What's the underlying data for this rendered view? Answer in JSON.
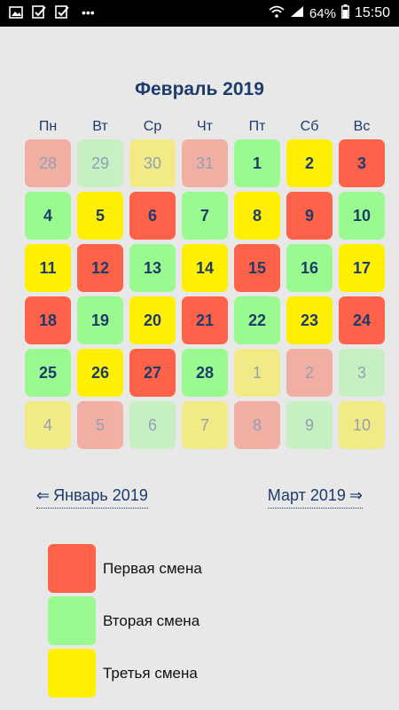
{
  "statusbar": {
    "battery": "64%",
    "time": "15:50",
    "more": "•••"
  },
  "calendar": {
    "title": "Февраль 2019",
    "weekdays": [
      "Пн",
      "Вт",
      "Ср",
      "Чт",
      "Пт",
      "Сб",
      "Вс"
    ],
    "days": [
      {
        "label": "28",
        "shift": "first",
        "muted": true
      },
      {
        "label": "29",
        "shift": "second",
        "muted": true
      },
      {
        "label": "30",
        "shift": "third",
        "muted": true
      },
      {
        "label": "31",
        "shift": "first",
        "muted": true
      },
      {
        "label": "1",
        "shift": "second",
        "muted": false
      },
      {
        "label": "2",
        "shift": "third",
        "muted": false
      },
      {
        "label": "3",
        "shift": "first",
        "muted": false
      },
      {
        "label": "4",
        "shift": "second",
        "muted": false
      },
      {
        "label": "5",
        "shift": "third",
        "muted": false
      },
      {
        "label": "6",
        "shift": "first",
        "muted": false
      },
      {
        "label": "7",
        "shift": "second",
        "muted": false
      },
      {
        "label": "8",
        "shift": "third",
        "muted": false
      },
      {
        "label": "9",
        "shift": "first",
        "muted": false
      },
      {
        "label": "10",
        "shift": "second",
        "muted": false
      },
      {
        "label": "11",
        "shift": "third",
        "muted": false
      },
      {
        "label": "12",
        "shift": "first",
        "muted": false
      },
      {
        "label": "13",
        "shift": "second",
        "muted": false
      },
      {
        "label": "14",
        "shift": "third",
        "muted": false
      },
      {
        "label": "15",
        "shift": "first",
        "muted": false
      },
      {
        "label": "16",
        "shift": "second",
        "muted": false
      },
      {
        "label": "17",
        "shift": "third",
        "muted": false
      },
      {
        "label": "18",
        "shift": "first",
        "muted": false
      },
      {
        "label": "19",
        "shift": "second",
        "muted": false
      },
      {
        "label": "20",
        "shift": "third",
        "muted": false
      },
      {
        "label": "21",
        "shift": "first",
        "muted": false
      },
      {
        "label": "22",
        "shift": "second",
        "muted": false
      },
      {
        "label": "23",
        "shift": "third",
        "muted": false
      },
      {
        "label": "24",
        "shift": "first",
        "muted": false
      },
      {
        "label": "25",
        "shift": "second",
        "muted": false
      },
      {
        "label": "26",
        "shift": "third",
        "muted": false
      },
      {
        "label": "27",
        "shift": "first",
        "muted": false
      },
      {
        "label": "28",
        "shift": "second",
        "muted": false
      },
      {
        "label": "1",
        "shift": "third",
        "muted": true
      },
      {
        "label": "2",
        "shift": "first",
        "muted": true
      },
      {
        "label": "3",
        "shift": "second",
        "muted": true
      },
      {
        "label": "4",
        "shift": "third",
        "muted": true
      },
      {
        "label": "5",
        "shift": "first",
        "muted": true
      },
      {
        "label": "6",
        "shift": "second",
        "muted": true
      },
      {
        "label": "7",
        "shift": "third",
        "muted": true
      },
      {
        "label": "8",
        "shift": "first",
        "muted": true
      },
      {
        "label": "9",
        "shift": "second",
        "muted": true
      },
      {
        "label": "10",
        "shift": "third",
        "muted": true
      }
    ]
  },
  "navigation": {
    "prev_arrow": "⇐",
    "prev_label": "Январь 2019",
    "next_label": "Март 2019",
    "next_arrow": "⇒"
  },
  "legend": [
    {
      "label": "Первая смена",
      "color": "#fe6249"
    },
    {
      "label": "Вторая смена",
      "color": "#99fa90"
    },
    {
      "label": "Третья смена",
      "color": "#ffef00"
    }
  ],
  "colors": {
    "first": "#fe6249",
    "second": "#99fa90",
    "third": "#ffef00",
    "text": "#1d3b6b",
    "background": "#e8e8e8"
  }
}
